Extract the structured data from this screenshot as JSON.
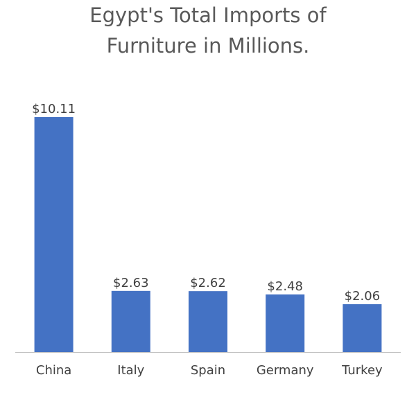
{
  "chart_data": {
    "type": "bar",
    "title": "Egypt's Total Imports of Furniture in Millions.",
    "categories": [
      "China",
      "Italy",
      "Spain",
      "Germany",
      "Turkey"
    ],
    "values": [
      10.11,
      2.63,
      2.62,
      2.48,
      2.06
    ],
    "value_labels": [
      "$10.11",
      "$2.63",
      "$2.62",
      "$2.48",
      "$2.06"
    ],
    "color": "#4472c4"
  }
}
